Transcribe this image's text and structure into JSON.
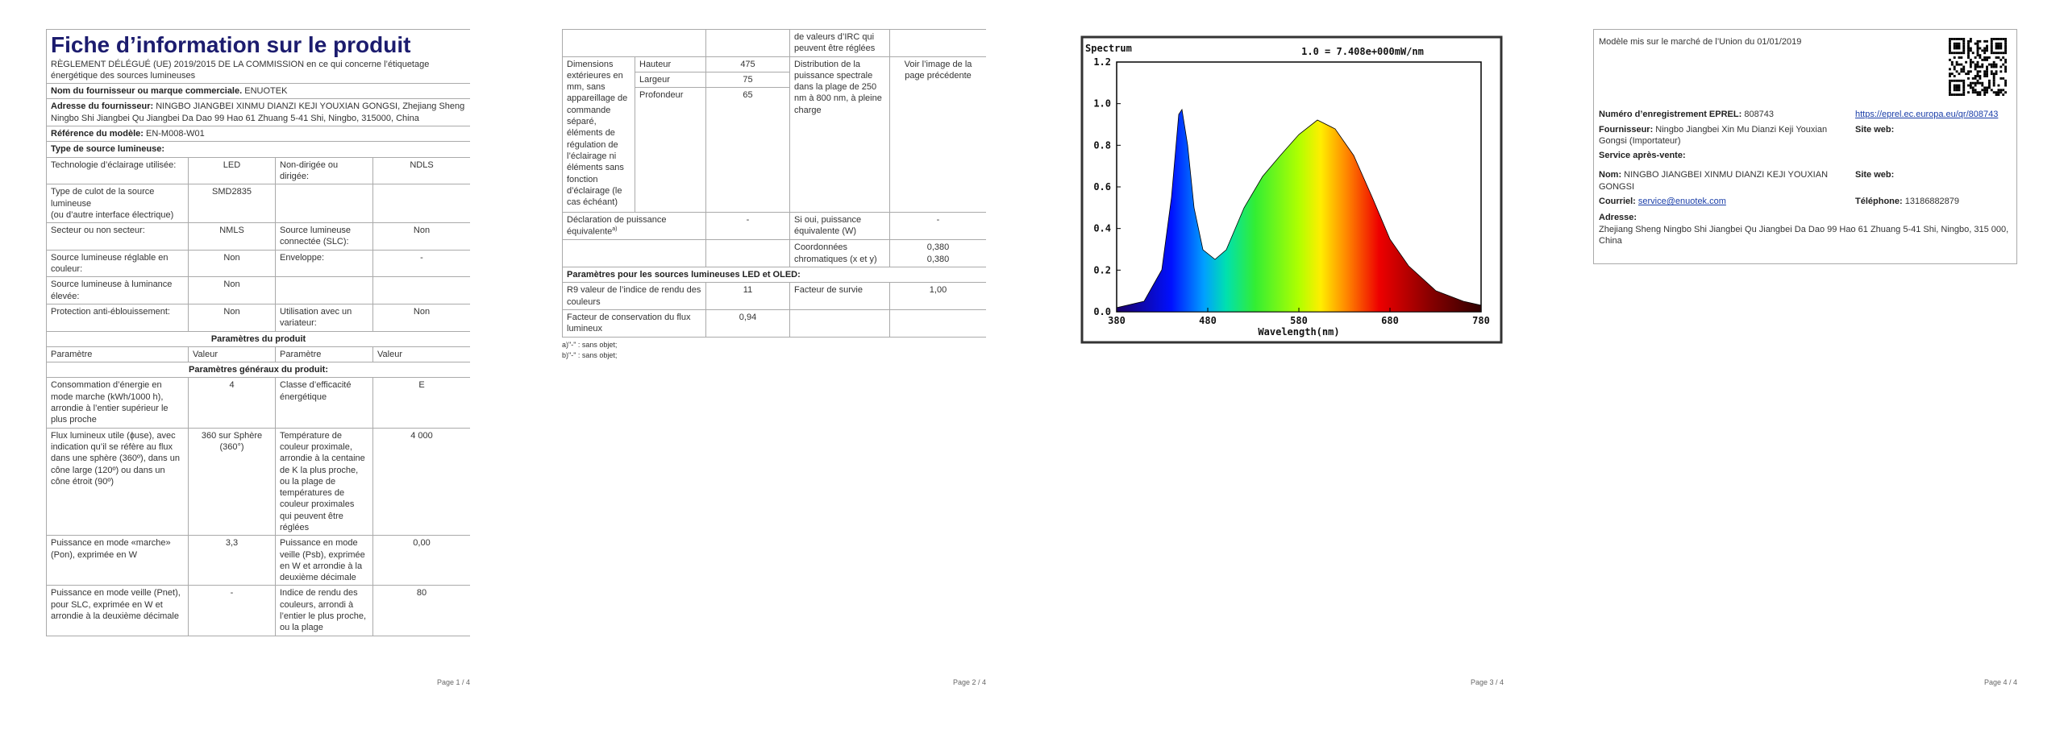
{
  "page1": {
    "title": "Fiche d’information sur le produit",
    "regulation": "RÈGLEMENT DÉLÉGUÉ (UE) 2019/2015 DE LA COMMISSION en ce qui concerne l’étiquetage énergétique des sources lumineuses",
    "supplier": {
      "label": "Nom du fournisseur ou marque commerciale.",
      "value": "ENUOTEK"
    },
    "address": {
      "label": "Adresse du fournisseur:",
      "value": "NINGBO JIANGBEI XINMU DIANZI KEJI YOUXIAN GONGSI, Zhejiang Sheng Ningbo Shi Jiangbei Qu Jiangbei Da Dao 99 Hao 61 Zhuang 5-41 Shi, Ningbo, 315000, China"
    },
    "model": {
      "label": "Référence du modèle:",
      "value": "EN-M008-W01"
    },
    "type_heading": "Type de source lumineuse:",
    "type_rows": [
      [
        "Technologie d’éclairage utilisée:",
        "LED",
        "Non-dirigée ou dirigée:",
        "NDLS"
      ],
      [
        "Type de culot de la source lumineuse\n(ou d’autre interface électrique)",
        "SMD2835"
      ],
      [
        "Secteur ou non secteur:",
        "NMLS",
        "Source lumineuse connectée (SLC):",
        "Non"
      ],
      [
        "Source lumineuse réglable en couleur:",
        "Non",
        "Enveloppe:",
        "-"
      ],
      [
        "Source lumineuse à luminance élevée:",
        "Non"
      ],
      [
        "Protection anti-éblouissement:",
        "Non",
        "Utilisation avec un variateur:",
        "Non"
      ]
    ],
    "params_heading": "Paramètres du produit",
    "params_header": [
      "Paramètre",
      "Valeur",
      "Paramètre",
      "Valeur"
    ],
    "general_heading": "Paramètres généraux du produit:",
    "param_rows": [
      [
        "Consommation d’énergie en mode marche (kWh/1000 h), arrondie à l’entier supérieur le plus proche",
        "4",
        "Classe d’efficacité énergétique",
        "E"
      ],
      [
        "Flux lumineux utile (ɸuse), avec indication qu’il se réfère au flux dans une sphère (360º), dans un cône large (120º) ou dans un cône étroit (90º)",
        "360 sur Sphère (360°)",
        "Température de couleur proximale, arrondie à la centaine de K la plus proche, ou la plage de températures de couleur proximales qui peuvent être réglées",
        "4 000"
      ],
      [
        "Puissance en mode «marche» (Pon), exprimée en W",
        "3,3",
        "Puissance en mode veille (Psb), exprimée en W et arrondie à la deuxième décimale",
        "0,00"
      ],
      [
        "Puissance en mode veille (Pnet), pour SLC, exprimée en W et arrondie à la deuxième décimale",
        "-",
        "Indice de rendu des couleurs, arrondi à l’entier le plus proche, ou la plage",
        "80"
      ]
    ]
  },
  "page2": {
    "cri_continued": "de valeurs d’IRC qui peuvent être réglées",
    "dimensions": {
      "label": "Dimensions extérieures en mm, sans appareillage de commande séparé, éléments de régulation de l’éclairage ni éléments sans fonction d’éclairage (le cas échéant)",
      "rows": [
        [
          "Hauteur",
          "475"
        ],
        [
          "Largeur",
          "75"
        ],
        [
          "Profondeur",
          "65"
        ]
      ],
      "spectral_label": "Distribution de la puissance spectrale dans la plage de 250 nm à 800 nm, à pleine charge",
      "spectral_value": "Voir l’image de la page précédente"
    },
    "equivalent": {
      "label": "Déclaration de puissance équivalente",
      "note": "a)",
      "value": "-",
      "label2": "Si oui, puissance équivalente (W)",
      "value2": "-"
    },
    "chromaticity": {
      "label": "Coordonnées chromatiques (x et y)",
      "values": [
        "0,380",
        "0,380"
      ]
    },
    "led_heading": "Paramètres pour les sources lumineuses LED et OLED:",
    "led_rows": [
      [
        "R9 valeur de l’indice de rendu des couleurs",
        "11",
        "Facteur de survie",
        "1,00"
      ],
      [
        "Facteur de conservation du flux lumineux",
        "0,94"
      ]
    ],
    "footnotes": [
      "a)\"-\" : sans objet;",
      "b)\"-\" : sans objet;"
    ]
  },
  "page3": {
    "spectrum": {
      "title": "Spectrum",
      "scale": "1.0 = 7.408e+000mW/nm",
      "yticks": [
        "1.2",
        "1.0",
        "0.8",
        "0.6",
        "0.4",
        "0.2",
        "0.0"
      ],
      "xticks": [
        "380",
        "480",
        "580",
        "680",
        "780"
      ],
      "xlabel": "Wavelength(nm)"
    }
  },
  "page4": {
    "market": "Modèle mis sur le marché de l’Union du 01/01/2019",
    "eprel": {
      "label": "Numéro d’enregistrement EPREL:",
      "value": "808743",
      "link": "https://eprel.ec.europa.eu/qr/808743"
    },
    "supplier": {
      "label": "Fournisseur:",
      "value": "Ningbo Jiangbei Xin Mu Dianzi Keji Youxian Gongsi (Importateur)",
      "web_label": "Site web:"
    },
    "service_heading": "Service après-vente:",
    "name": {
      "label": "Nom:",
      "value": "NINGBO JIANGBEI XINMU DIANZI KEJI YOUXIAN GONGSI",
      "web_label": "Site web:"
    },
    "email": {
      "label": "Courriel:",
      "value": "service@enuotek.com",
      "phone_label": "Téléphone:",
      "phone": "13186882879"
    },
    "address": {
      "label": "Adresse:",
      "value": "Zhejiang Sheng Ningbo Shi Jiangbei Qu Jiangbei Da Dao 99 Hao 61 Zhuang 5-41 Shi, Ningbo, 315 000, China"
    }
  },
  "page_numbers": [
    "Page 1 / 4",
    "Page 2 / 4",
    "Page 3 / 4",
    "Page 4 / 4"
  ]
}
